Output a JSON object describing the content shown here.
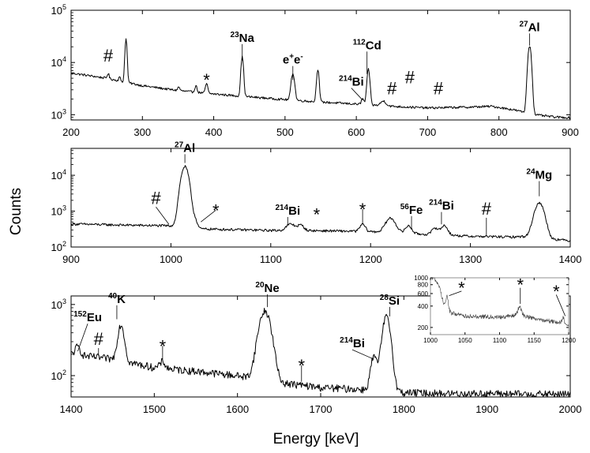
{
  "chart_data": {
    "type": "line",
    "xlabel": "Energy [keV]",
    "ylabel": "Counts",
    "panels": [
      {
        "name": "panel-1",
        "xlim": [
          200,
          900
        ],
        "ylim_log10": [
          2.9,
          5.0
        ],
        "xticks": [
          200,
          300,
          400,
          500,
          600,
          700,
          800,
          900
        ],
        "yticks": [
          {
            "value": 1000,
            "base": "10",
            "exp": "3"
          },
          {
            "value": 10000,
            "base": "10",
            "exp": "4"
          },
          {
            "value": 100000,
            "base": "10",
            "exp": "5"
          }
        ],
        "series": {
          "name": "spectrum 200-900 keV",
          "baseline_points": [
            [
              200,
              6300
            ],
            [
              250,
              5000
            ],
            [
              300,
              3600
            ],
            [
              350,
              2900
            ],
            [
              400,
              2500
            ],
            [
              450,
              2200
            ],
            [
              500,
              1950
            ],
            [
              550,
              1750
            ],
            [
              600,
              1600
            ],
            [
              650,
              1450
            ],
            [
              700,
              1350
            ],
            [
              760,
              1400
            ],
            [
              790,
              1450
            ],
            [
              820,
              1250
            ],
            [
              850,
              1000
            ],
            [
              880,
              900
            ],
            [
              900,
              880
            ]
          ],
          "peaks": [
            {
              "x": 252,
              "y": 1300,
              "w": 1.2
            },
            {
              "x": 277,
              "y": 24000,
              "w": 1.3
            },
            {
              "x": 268,
              "y": 800,
              "w": 1.2
            },
            {
              "x": 351,
              "y": 500,
              "w": 1.5
            },
            {
              "x": 375,
              "y": 900,
              "w": 1.5
            },
            {
              "x": 390,
              "y": 1400,
              "w": 1.5
            },
            {
              "x": 440,
              "y": 10500,
              "w": 1.6
            },
            {
              "x": 511,
              "y": 4300,
              "w": 2.2
            },
            {
              "x": 546,
              "y": 5700,
              "w": 1.6
            },
            {
              "x": 609,
              "y": 450,
              "w": 1.8
            },
            {
              "x": 617,
              "y": 5800,
              "w": 1.8
            },
            {
              "x": 638,
              "y": 350,
              "w": 3.5
            },
            {
              "x": 843,
              "y": 20000,
              "w": 2.2
            }
          ],
          "noise_fraction": 0.05
        },
        "labels": [
          {
            "kind": "sym",
            "text": "#",
            "x": 252,
            "y": 10500
          },
          {
            "kind": "sym",
            "text": "*",
            "x": 390,
            "y": 5400
          },
          {
            "kind": "nuc",
            "mass": "23",
            "element": "Na",
            "x": 440,
            "y": 25000,
            "tip_y": 11000
          },
          {
            "kind": "nuc",
            "mass": "+",
            "element": "e",
            "suffix_sup": "-",
            "suffix": "e",
            "x": 511,
            "y": 9500,
            "tip_y": 4600
          },
          {
            "kind": "nuc",
            "mass": "214",
            "element": "Bi",
            "x": 593,
            "y": 3600,
            "tip_y": 1900,
            "tip_x": 609
          },
          {
            "kind": "nuc",
            "mass": "112",
            "element": "Cd",
            "x": 615,
            "y": 18000,
            "tip_y": 6000
          },
          {
            "kind": "sym",
            "text": "#",
            "x": 650,
            "y": 2450
          },
          {
            "kind": "sym",
            "text": "#",
            "x": 675,
            "y": 4000
          },
          {
            "kind": "sym",
            "text": "#",
            "x": 715,
            "y": 2450
          },
          {
            "kind": "nuc",
            "mass": "27",
            "element": "Al",
            "x": 843,
            "y": 40000,
            "tip_y": 21000
          }
        ]
      },
      {
        "name": "panel-2",
        "xlim": [
          900,
          1400
        ],
        "ylim_log10": [
          2.0,
          4.75
        ],
        "xticks": [
          900,
          1000,
          1100,
          1200,
          1300,
          1400
        ],
        "yticks": [
          {
            "value": 100,
            "base": "10",
            "exp": "2"
          },
          {
            "value": 1000,
            "base": "10",
            "exp": "3"
          },
          {
            "value": 10000,
            "base": "10",
            "exp": "4"
          }
        ],
        "series": {
          "name": "spectrum 900-1400 keV",
          "baseline_points": [
            [
              900,
              440
            ],
            [
              950,
              410
            ],
            [
              1000,
              390
            ],
            [
              1010,
              500
            ],
            [
              1030,
              320
            ],
            [
              1100,
              290
            ],
            [
              1150,
              285
            ],
            [
              1200,
              270
            ],
            [
              1250,
              230
            ],
            [
              1300,
              200
            ],
            [
              1340,
              190
            ],
            [
              1360,
              200
            ],
            [
              1380,
              170
            ],
            [
              1400,
              150
            ]
          ],
          "peaks": [
            {
              "x": 1014,
              "y": 17000,
              "w": 3.2
            },
            {
              "x": 1024,
              "y": 250,
              "w": 2.0
            },
            {
              "x": 1120,
              "y": 150,
              "w": 4.0
            },
            {
              "x": 1130,
              "y": 120,
              "w": 3.0
            },
            {
              "x": 1192,
              "y": 160,
              "w": 2.5
            },
            {
              "x": 1220,
              "y": 380,
              "w": 4.5
            },
            {
              "x": 1238,
              "y": 150,
              "w": 3.0
            },
            {
              "x": 1265,
              "y": 120,
              "w": 3.0
            },
            {
              "x": 1274,
              "y": 180,
              "w": 3.0
            },
            {
              "x": 1369,
              "y": 1500,
              "w": 4.2
            }
          ],
          "noise_fraction": 0.08
        },
        "labels": [
          {
            "kind": "sym",
            "text": "#",
            "x": 985,
            "y": 1600,
            "tip_y": 430,
            "tip_x": 998
          },
          {
            "kind": "nuc",
            "mass": "27",
            "element": "Al",
            "x": 1014,
            "y": 45000,
            "tip_y": 22000
          },
          {
            "kind": "sym",
            "text": "*",
            "x": 1045,
            "y": 1300,
            "tip_y": 500,
            "tip_x": 1030
          },
          {
            "kind": "nuc",
            "mass": "214",
            "element": "Bi",
            "x": 1117,
            "y": 800,
            "tip_y": 400
          },
          {
            "kind": "sym",
            "text": "*",
            "x": 1146,
            "y": 1000
          },
          {
            "kind": "sym",
            "text": "*",
            "x": 1192,
            "y": 1400,
            "tip_y": 430
          },
          {
            "kind": "nuc",
            "mass": "56",
            "element": "Fe",
            "x": 1241,
            "y": 850,
            "tip_y": 320
          },
          {
            "kind": "nuc",
            "mass": "214",
            "element": "Bi",
            "x": 1271,
            "y": 1100,
            "tip_y": 430
          },
          {
            "kind": "sym",
            "text": "#",
            "x": 1316,
            "y": 800,
            "tip_y": 200
          },
          {
            "kind": "nuc",
            "mass": "24",
            "element": "Mg",
            "x": 1369,
            "y": 8000,
            "tip_y": 2600
          }
        ]
      },
      {
        "name": "panel-3",
        "xlim": [
          1400,
          2000
        ],
        "ylim_log10": [
          1.7,
          3.12
        ],
        "xticks": [
          1400,
          1500,
          1600,
          1700,
          1800,
          1900,
          2000
        ],
        "yticks": [
          {
            "value": 100,
            "base": "10",
            "exp": "2"
          },
          {
            "value": 1000,
            "base": "10",
            "exp": "3"
          }
        ],
        "series": {
          "name": "spectrum 1400-2000 keV",
          "baseline_points": [
            [
              1400,
              200
            ],
            [
              1450,
              170
            ],
            [
              1500,
              130
            ],
            [
              1550,
              115
            ],
            [
              1600,
              100
            ],
            [
              1650,
              80
            ],
            [
              1700,
              68
            ],
            [
              1750,
              64
            ],
            [
              1790,
              60
            ],
            [
              1800,
              58
            ],
            [
              1850,
              56
            ],
            [
              1900,
              56
            ],
            [
              1950,
              55
            ],
            [
              2000,
              55
            ]
          ],
          "peaks": [
            {
              "x": 1408,
              "y": 60,
              "w": 3.0
            },
            {
              "x": 1460,
              "y": 360,
              "w": 3.5
            },
            {
              "x": 1510,
              "y": 30,
              "w": 3.0
            },
            {
              "x": 1633,
              "y": 720,
              "w": 6.5
            },
            {
              "x": 1764,
              "y": 120,
              "w": 3.5
            },
            {
              "x": 1779,
              "y": 600,
              "w": 4.5
            }
          ],
          "noise_fraction": 0.12
        },
        "labels": [
          {
            "kind": "nuc",
            "mass": "152",
            "element": "Eu",
            "x": 1420,
            "y": 580,
            "tip_y": 220,
            "tip_x": 1408
          },
          {
            "kind": "sym",
            "text": "#",
            "x": 1433,
            "y": 270,
            "tip_y": 190
          },
          {
            "kind": "nuc",
            "mass": "40",
            "element": "K",
            "x": 1455,
            "y": 1050,
            "tip_y": 620
          },
          {
            "kind": "sym",
            "text": "*",
            "x": 1510,
            "y": 290,
            "tip_y": 170
          },
          {
            "kind": "nuc",
            "mass": "20",
            "element": "Ne",
            "x": 1636,
            "y": 1500,
            "tip_y": 920
          },
          {
            "kind": "sym",
            "text": "*",
            "x": 1677,
            "y": 155,
            "tip_y": 82
          },
          {
            "kind": "nuc",
            "mass": "214",
            "element": "Bi",
            "x": 1738,
            "y": 250,
            "tip_y": 170,
            "tip_x": 1764
          },
          {
            "kind": "nuc",
            "mass": "28",
            "element": "Si",
            "x": 1783,
            "y": 1000,
            "tip_y": 680
          }
        ]
      }
    ],
    "inset": {
      "name": "inset-zoom-1000-1200",
      "xlim": [
        1000,
        1200
      ],
      "ylim_log10": [
        2.2,
        3.0
      ],
      "xticks": [
        1000,
        1050,
        1100,
        1150,
        1200
      ],
      "yticks": [
        200,
        400,
        600,
        800,
        1000
      ],
      "series": {
        "name": "zoom",
        "baseline_points": [
          [
            1000,
            1000
          ],
          [
            1005,
            1000
          ],
          [
            1012,
            800
          ],
          [
            1018,
            480
          ],
          [
            1022,
            380
          ],
          [
            1030,
            320
          ],
          [
            1050,
            290
          ],
          [
            1100,
            280
          ],
          [
            1130,
            300
          ],
          [
            1150,
            270
          ],
          [
            1180,
            240
          ],
          [
            1200,
            220
          ]
        ],
        "peaks": [
          {
            "x": 1024,
            "y": 180,
            "w": 1.6
          },
          {
            "x": 1129,
            "y": 90,
            "w": 2.5
          },
          {
            "x": 1192,
            "y": 50,
            "w": 1.5
          }
        ],
        "noise_fraction": 0.07
      },
      "labels": [
        {
          "kind": "sym",
          "text": "*",
          "x": 1045,
          "y": 720,
          "tip_y": 560,
          "tip_x": 1027
        },
        {
          "kind": "sym",
          "text": "*",
          "x": 1130,
          "y": 800,
          "tip_y": 430
        },
        {
          "kind": "sym",
          "text": "*",
          "x": 1182,
          "y": 640,
          "tip_y": 290,
          "tip_x": 1195
        }
      ]
    }
  }
}
